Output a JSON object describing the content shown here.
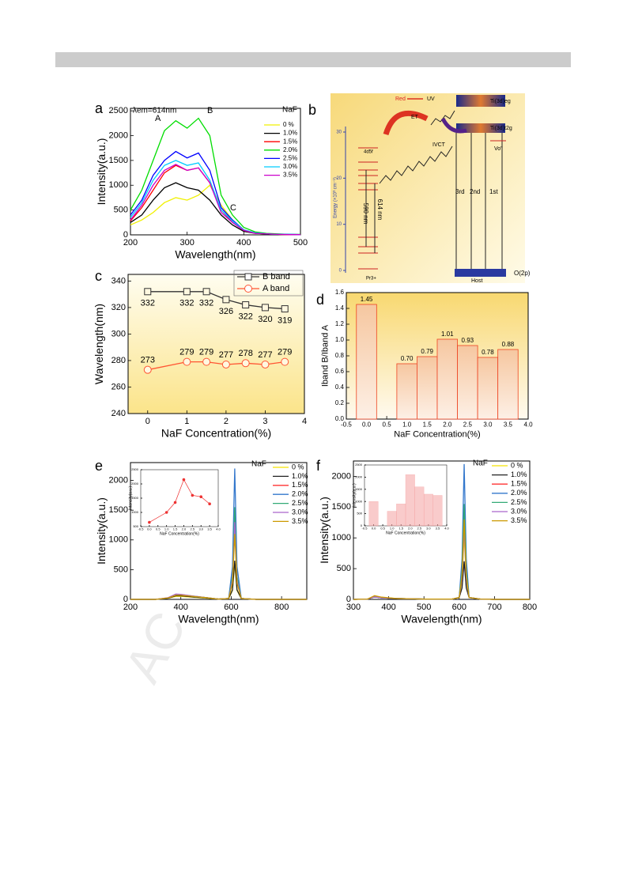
{
  "watermark": "AC",
  "diagram": {
    "label": "b",
    "red": "Red",
    "uv": "UV",
    "et": "ET",
    "ivct": "IVCT",
    "eg": "Ti(3d)eg",
    "t2g": "Ti(3d)t2g",
    "vo": "Vo''",
    "level": "4d5f",
    "l590": "590 nm",
    "l614": "614 nm",
    "third": "3rd",
    "second": "2nd",
    "first": "1st",
    "host": "Host",
    "o2p": "O(2p)",
    "pr": "Pr3+",
    "ylabel": "Energy (×10³ cm⁻¹)",
    "yticks": [
      0,
      10,
      20,
      30
    ]
  },
  "chart_data": [
    {
      "type": "line",
      "label": "a",
      "xlabel": "Wavelength(nm)",
      "ylabel": "Intensity(a.u.)",
      "annotations": [
        "λem=614nm",
        "A",
        "B",
        "C"
      ],
      "legend_title": "NaF",
      "x": [
        200,
        220,
        240,
        260,
        280,
        300,
        320,
        340,
        360,
        380,
        400,
        420,
        440,
        460,
        480,
        500
      ],
      "xlim": [
        200,
        500
      ],
      "ylim": [
        0,
        2550
      ],
      "xticks": [
        200,
        300,
        400,
        500
      ],
      "yticks": [
        0,
        500,
        1000,
        1500,
        2000,
        2500
      ],
      "series": [
        {
          "name": "0  %",
          "color": "#f0f000",
          "values": [
            200,
            300,
            450,
            650,
            750,
            700,
            800,
            1000,
            600,
            300,
            100,
            30,
            20,
            10,
            5,
            5
          ]
        },
        {
          "name": "1.0%",
          "color": "#000000",
          "values": [
            250,
            400,
            700,
            950,
            1050,
            950,
            900,
            700,
            400,
            200,
            70,
            30,
            20,
            10,
            5,
            5
          ]
        },
        {
          "name": "1.5%",
          "color": "#ff0000",
          "values": [
            280,
            550,
            900,
            1250,
            1400,
            1300,
            1350,
            1050,
            500,
            250,
            90,
            30,
            20,
            10,
            5,
            5
          ]
        },
        {
          "name": "2.0%",
          "color": "#00dd00",
          "values": [
            500,
            900,
            1500,
            2100,
            2300,
            2150,
            2350,
            2000,
            800,
            400,
            150,
            60,
            30,
            20,
            10,
            10
          ]
        },
        {
          "name": "2.5%",
          "color": "#0000ff",
          "values": [
            400,
            700,
            1200,
            1500,
            1680,
            1550,
            1650,
            1300,
            550,
            300,
            100,
            40,
            20,
            10,
            10,
            5
          ]
        },
        {
          "name": "3.0%",
          "color": "#00ccff",
          "values": [
            350,
            650,
            1100,
            1400,
            1500,
            1400,
            1450,
            1100,
            500,
            280,
            100,
            40,
            20,
            10,
            10,
            5
          ]
        },
        {
          "name": "3.5%",
          "color": "#cc00cc",
          "values": [
            300,
            600,
            1000,
            1300,
            1420,
            1300,
            1350,
            1050,
            450,
            250,
            90,
            30,
            20,
            10,
            5,
            5
          ]
        }
      ]
    },
    {
      "type": "line",
      "label": "c",
      "xlabel": "NaF Concentration(%)",
      "ylabel": "Wavelength(nm)",
      "x": [
        0,
        1,
        1.5,
        2,
        2.5,
        3,
        3.5
      ],
      "xlim": [
        -0.5,
        4
      ],
      "ylim": [
        240,
        345
      ],
      "xticks": [
        0,
        1,
        2,
        3,
        4
      ],
      "yticks": [
        240,
        260,
        280,
        300,
        320,
        340
      ],
      "series": [
        {
          "name": "B band",
          "color": "#333333",
          "marker": "square",
          "values": [
            332,
            332,
            332,
            326,
            322,
            320,
            319
          ]
        },
        {
          "name": "A band",
          "color": "#ff5533",
          "marker": "circle",
          "values": [
            273,
            279,
            279,
            277,
            278,
            277,
            279
          ]
        }
      ]
    },
    {
      "type": "bar",
      "label": "d",
      "xlabel": "NaF Concentration(%)",
      "ylabel": "Iband B/Iband A",
      "color": "#ee4422",
      "x": [
        0,
        1,
        1.5,
        2,
        2.5,
        3,
        3.5
      ],
      "values": [
        1.45,
        0.7,
        0.79,
        1.01,
        0.93,
        0.78,
        0.88
      ],
      "value_labels": [
        "1.45",
        "0.70",
        "0.79",
        "1.01",
        "0.93",
        "0.78",
        "0.88"
      ],
      "xlim": [
        -0.5,
        4
      ],
      "ylim": [
        0,
        1.6
      ],
      "xticks": [
        -0.5,
        {
          "value": 0,
          "label": "0.0"
        },
        0.5,
        {
          "value": 1,
          "label": "1.0"
        },
        1.5,
        {
          "value": 2,
          "label": "2.0"
        },
        2.5,
        {
          "value": 3,
          "label": "3.0"
        },
        3.5,
        {
          "value": 4,
          "label": "4.0"
        }
      ],
      "yticks": [
        {
          "value": 0,
          "label": "0.0"
        },
        0.2,
        0.4,
        0.6,
        0.8,
        {
          "value": 1,
          "label": "1.0"
        },
        1.2,
        1.4,
        1.6
      ]
    },
    {
      "type": "line",
      "label": "e",
      "xlabel": "Wavelength(nm)",
      "ylabel": "Intensity(a.u.)",
      "legend_title": "NaF",
      "x": [
        200,
        300,
        350,
        380,
        400,
        450,
        500,
        550,
        590,
        605,
        614,
        623,
        640,
        700,
        800,
        900
      ],
      "xlim": [
        200,
        900
      ],
      "ylim": [
        0,
        2300
      ],
      "xticks": [
        200,
        400,
        600,
        800
      ],
      "yticks": [
        0,
        500,
        1000,
        1500,
        2000
      ],
      "series": [
        {
          "name": "0  %",
          "color": "#f5e400",
          "values": [
            0,
            0,
            20,
            50,
            50,
            35,
            20,
            5,
            15,
            150,
            600,
            150,
            15,
            0,
            0,
            0
          ]
        },
        {
          "name": "1.0%",
          "color": "#222222",
          "values": [
            0,
            0,
            20,
            60,
            60,
            40,
            25,
            5,
            15,
            160,
            650,
            160,
            15,
            0,
            0,
            0
          ]
        },
        {
          "name": "1.5%",
          "color": "#ff3333",
          "values": [
            0,
            0,
            25,
            70,
            70,
            50,
            30,
            5,
            15,
            375,
            1500,
            375,
            15,
            0,
            0,
            0
          ]
        },
        {
          "name": "2.0%",
          "color": "#3377cc",
          "values": [
            0,
            0,
            25,
            80,
            80,
            55,
            30,
            5,
            15,
            550,
            2200,
            550,
            15,
            0,
            0,
            0
          ]
        },
        {
          "name": "2.5%",
          "color": "#33aa77",
          "values": [
            0,
            0,
            25,
            75,
            75,
            50,
            30,
            5,
            15,
            390,
            1550,
            390,
            15,
            0,
            0,
            0
          ]
        },
        {
          "name": "3.0%",
          "color": "#aa66cc",
          "values": [
            0,
            0,
            30,
            90,
            85,
            55,
            30,
            5,
            15,
            325,
            1300,
            325,
            15,
            0,
            0,
            0
          ]
        },
        {
          "name": "3.5%",
          "color": "#cc9900",
          "values": [
            0,
            0,
            25,
            70,
            70,
            50,
            30,
            5,
            15,
            275,
            1100,
            275,
            15,
            0,
            0,
            0
          ]
        }
      ]
    },
    {
      "type": "line",
      "xlabel": "NaF Concentration(%)",
      "ylabel": "Intensity(a.u.)",
      "x": [
        0,
        1,
        1.5,
        2,
        2.5,
        3,
        3.5
      ],
      "xlim": [
        -0.5,
        4
      ],
      "ylim": [
        500,
        2500
      ],
      "xticks": [
        -0.5,
        {
          "value": 0,
          "label": "0.0"
        },
        0.5,
        {
          "value": 1,
          "label": "1.0"
        },
        1.5,
        {
          "value": 2,
          "label": "2.0"
        },
        2.5,
        {
          "value": 3,
          "label": "3.0"
        },
        3.5,
        {
          "value": 4,
          "label": "4.0"
        }
      ],
      "yticks": [
        500,
        1000,
        1500,
        2000,
        2500
      ],
      "series": [
        {
          "color": "#ee3333",
          "marker": "dot",
          "values": [
            650,
            1000,
            1350,
            2150,
            1600,
            1550,
            1300
          ]
        }
      ]
    },
    {
      "type": "line",
      "label": "f",
      "xlabel": "Wavelength(nm)",
      "ylabel": "Intensity(a.u.)",
      "legend_title": "NaF",
      "x": [
        300,
        340,
        360,
        380,
        420,
        500,
        580,
        600,
        608,
        614,
        620,
        628,
        660,
        700,
        800
      ],
      "xlim": [
        300,
        800
      ],
      "ylim": [
        0,
        2250
      ],
      "xticks": [
        300,
        400,
        500,
        600,
        700,
        800
      ],
      "yticks": [
        0,
        500,
        1000,
        1500,
        2000
      ],
      "series": [
        {
          "name": "0  %",
          "color": "#f5e400",
          "values": [
            0,
            5,
            40,
            24,
            15,
            5,
            5,
            30,
            315,
            1050,
            315,
            30,
            5,
            0,
            0
          ]
        },
        {
          "name": "1.0%",
          "color": "#222222",
          "values": [
            0,
            5,
            40,
            24,
            15,
            5,
            5,
            30,
            186,
            620,
            186,
            30,
            5,
            0,
            0
          ]
        },
        {
          "name": "1.5%",
          "color": "#ff3333",
          "values": [
            0,
            5,
            40,
            24,
            15,
            5,
            5,
            30,
            450,
            1500,
            450,
            30,
            5,
            0,
            0
          ]
        },
        {
          "name": "2.0%",
          "color": "#3377cc",
          "values": [
            0,
            5,
            40,
            24,
            15,
            5,
            5,
            30,
            660,
            2200,
            660,
            30,
            5,
            0,
            0
          ]
        },
        {
          "name": "2.5%",
          "color": "#33aa77",
          "values": [
            0,
            5,
            40,
            24,
            15,
            5,
            5,
            30,
            465,
            1550,
            465,
            30,
            5,
            0,
            0
          ]
        },
        {
          "name": "3.0%",
          "color": "#aa66cc",
          "values": [
            0,
            5,
            40,
            24,
            15,
            5,
            5,
            30,
            345,
            1150,
            345,
            30,
            5,
            0,
            0
          ]
        },
        {
          "name": "3.5%",
          "color": "#cc9900",
          "values": [
            0,
            5,
            60,
            36,
            15,
            5,
            5,
            30,
            390,
            1300,
            390,
            30,
            5,
            0,
            0
          ]
        }
      ]
    },
    {
      "type": "bar",
      "xlabel": "NaF Concentration(%)",
      "ylabel": "Intensity(a.u.)",
      "color": "#f4a0a0",
      "x": [
        0,
        1,
        1.5,
        2,
        2.5,
        3,
        3.5
      ],
      "values": [
        1000,
        600,
        900,
        2100,
        1600,
        1300,
        1250
      ],
      "xlim": [
        -0.5,
        4
      ],
      "ylim": [
        0,
        2500
      ],
      "xticks": [
        -0.5,
        {
          "value": 0,
          "label": "0.0"
        },
        0.5,
        {
          "value": 1,
          "label": "1.0"
        },
        1.5,
        {
          "value": 2,
          "label": "2.0"
        },
        2.5,
        {
          "value": 3,
          "label": "3.0"
        },
        3.5,
        {
          "value": 4,
          "label": "4.0"
        }
      ],
      "yticks": [
        0,
        500,
        1000,
        1500,
        2000,
        2500
      ]
    }
  ]
}
